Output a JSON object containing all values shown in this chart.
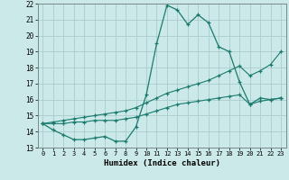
{
  "title": "",
  "xlabel": "Humidex (Indice chaleur)",
  "xlim": [
    -0.5,
    23.5
  ],
  "ylim": [
    13,
    22
  ],
  "xticks": [
    0,
    1,
    2,
    3,
    4,
    5,
    6,
    7,
    8,
    9,
    10,
    11,
    12,
    13,
    14,
    15,
    16,
    17,
    18,
    19,
    20,
    21,
    22,
    23
  ],
  "yticks": [
    13,
    14,
    15,
    16,
    17,
    18,
    19,
    20,
    21,
    22
  ],
  "background_color": "#cce9e9",
  "grid_color": "#aacccc",
  "line_color": "#1a7a6e",
  "line1_x": [
    0,
    1,
    2,
    3,
    4,
    5,
    6,
    7,
    8,
    9,
    10,
    11,
    12,
    13,
    14,
    15,
    16,
    17,
    18,
    19,
    20,
    21,
    22,
    23
  ],
  "line1_y": [
    14.5,
    14.1,
    13.8,
    13.5,
    13.5,
    13.6,
    13.7,
    13.4,
    13.4,
    14.3,
    16.3,
    19.5,
    21.9,
    21.6,
    20.7,
    21.3,
    20.8,
    19.3,
    19.0,
    17.1,
    15.7,
    16.1,
    16.0,
    16.1
  ],
  "line2_x": [
    0,
    1,
    2,
    3,
    4,
    5,
    6,
    7,
    8,
    9,
    10,
    11,
    12,
    13,
    14,
    15,
    16,
    17,
    18,
    19,
    20,
    21,
    22,
    23
  ],
  "line2_y": [
    14.5,
    14.6,
    14.7,
    14.8,
    14.9,
    15.0,
    15.1,
    15.2,
    15.3,
    15.5,
    15.8,
    16.1,
    16.4,
    16.6,
    16.8,
    17.0,
    17.2,
    17.5,
    17.8,
    18.1,
    17.5,
    17.8,
    18.2,
    19.0
  ],
  "line3_x": [
    0,
    1,
    2,
    3,
    4,
    5,
    6,
    7,
    8,
    9,
    10,
    11,
    12,
    13,
    14,
    15,
    16,
    17,
    18,
    19,
    20,
    21,
    22,
    23
  ],
  "line3_y": [
    14.5,
    14.5,
    14.5,
    14.6,
    14.6,
    14.7,
    14.7,
    14.7,
    14.8,
    14.9,
    15.1,
    15.3,
    15.5,
    15.7,
    15.8,
    15.9,
    16.0,
    16.1,
    16.2,
    16.3,
    15.7,
    15.9,
    16.0,
    16.1
  ]
}
